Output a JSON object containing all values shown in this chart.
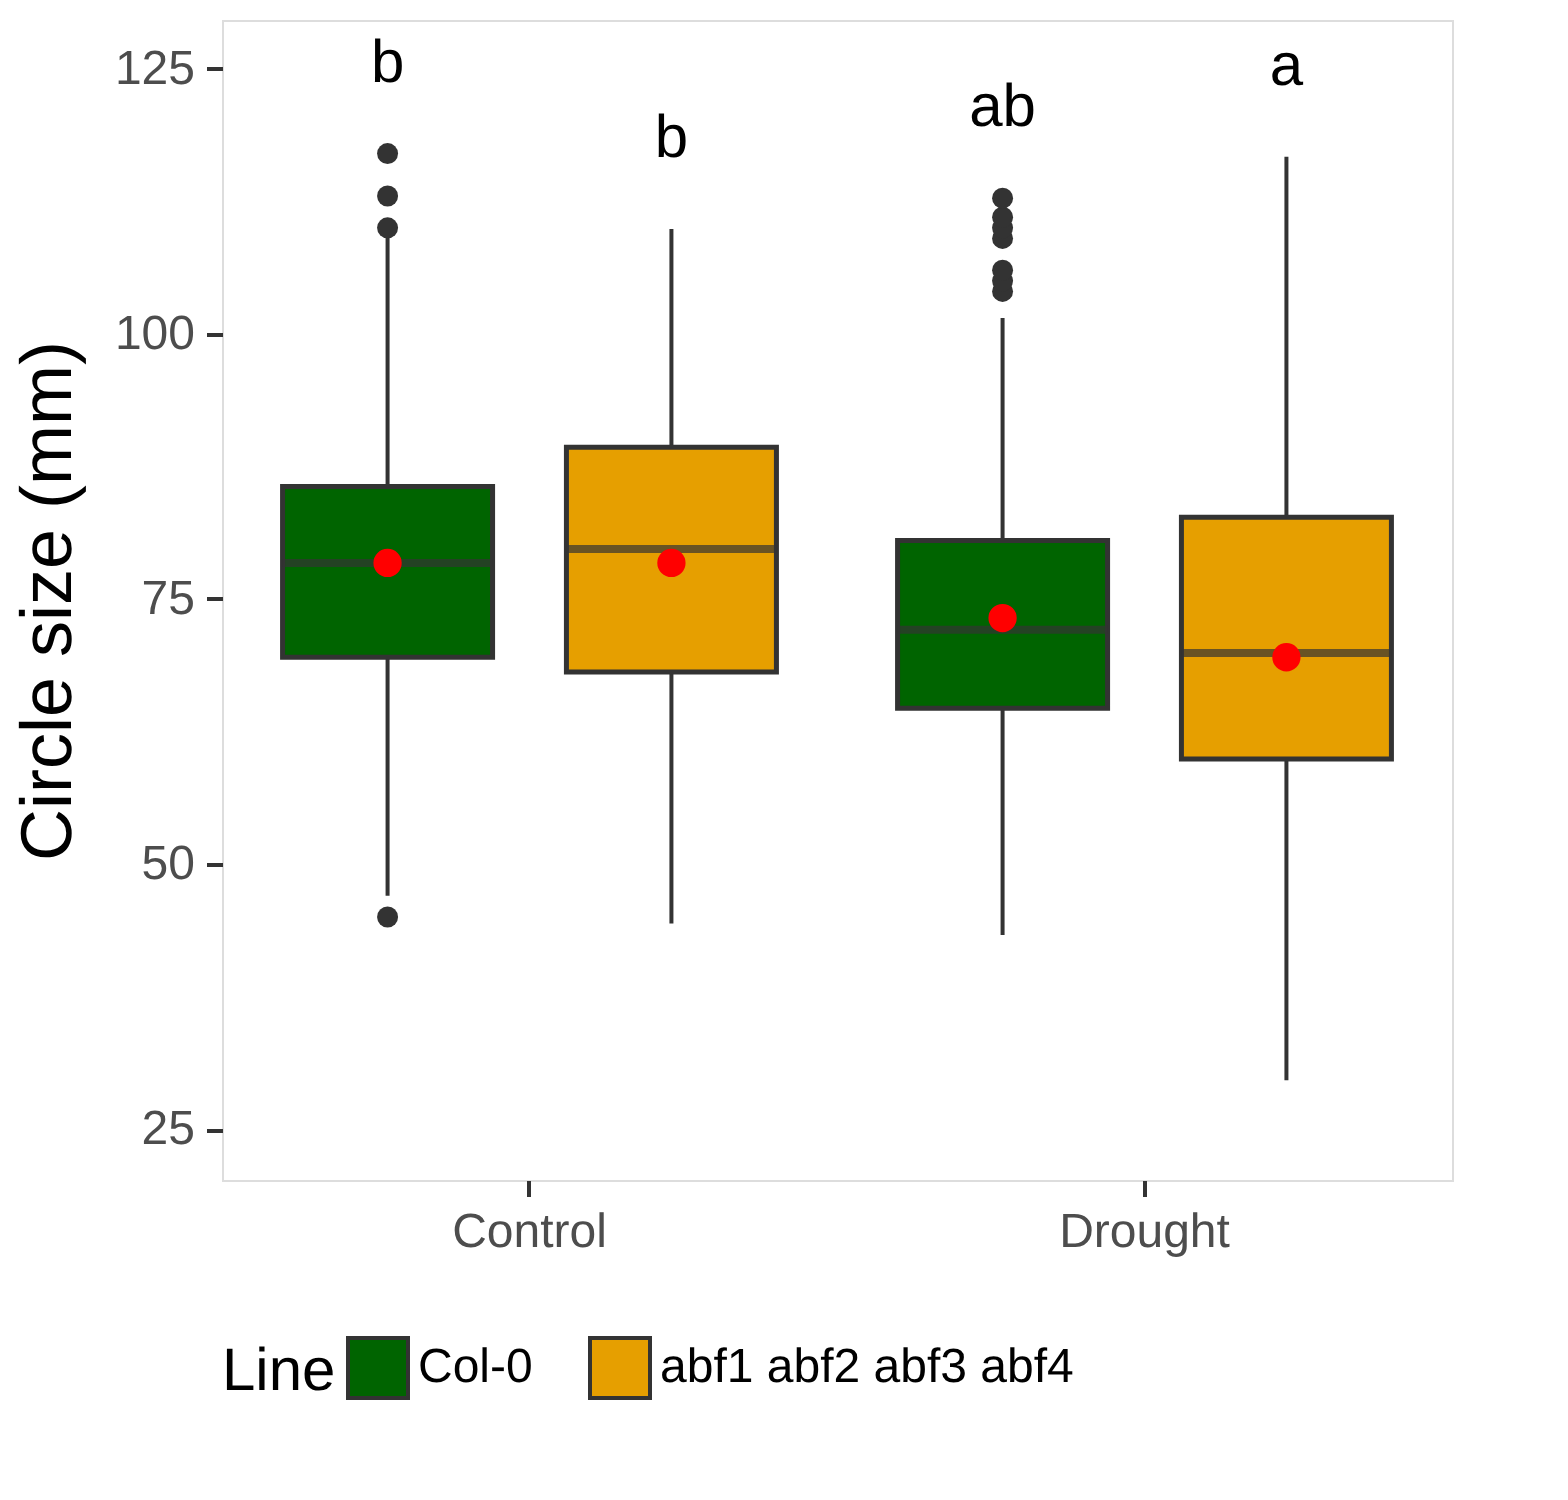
{
  "chart_data": {
    "type": "box",
    "ylabel": "Circle size (mm)",
    "legend_title": "Line",
    "legend": "bottom",
    "grid": false,
    "categories": [
      "Control",
      "Drought"
    ],
    "ylim": [
      20.2,
      129.6
    ],
    "yticks": [
      25,
      50,
      75,
      100,
      125
    ],
    "series": [
      {
        "name": "Col-0",
        "color": "#006400",
        "boxes": [
          {
            "low": 47,
            "q1": 69.5,
            "median": 78.4,
            "q3": 85.6,
            "high": 109.5,
            "mean": 78.4,
            "outliers": [
              45,
              110,
              113,
              117
            ]
          },
          {
            "low": 43.3,
            "q1": 64.7,
            "median": 72.1,
            "q3": 80.5,
            "high": 101.5,
            "mean": 73.2,
            "outliers": [
              104,
              105,
              106,
              109,
              110,
              111,
              112.8
            ]
          }
        ]
      },
      {
        "name": "abf1 abf2 abf3 abf4",
        "color": "#e69f00",
        "boxes": [
          {
            "low": 44.4,
            "q1": 68.1,
            "median": 79.7,
            "q3": 89.3,
            "high": 109.9,
            "mean": 78.4
          },
          {
            "low": 29.6,
            "q1": 59.9,
            "median": 69.9,
            "q3": 82.7,
            "high": 116.7,
            "mean": 69.5
          }
        ]
      }
    ],
    "annotations": [
      "b",
      "b",
      "ab",
      "a"
    ]
  }
}
